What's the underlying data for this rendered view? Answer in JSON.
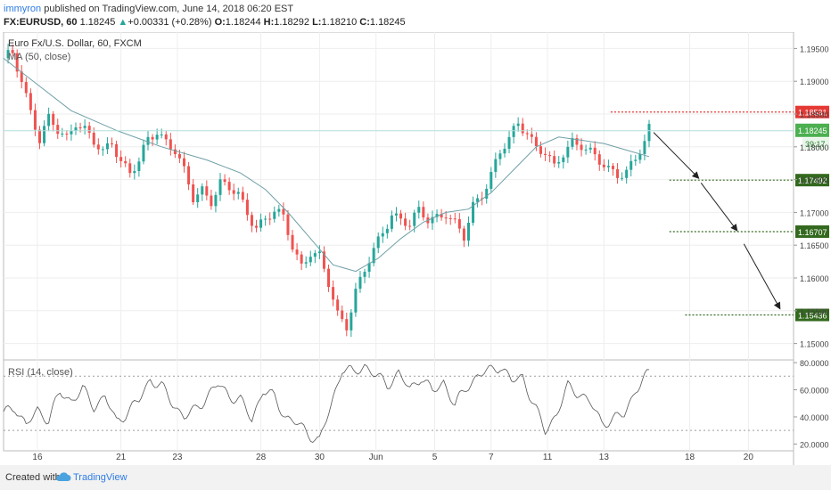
{
  "header": {
    "author": "immyron",
    "published": " published on TradingView.com, June 14, 2018 06:20 EST",
    "symbol": "FX:EURUSD, 60",
    "last": "1.18245",
    "change": "+0.00331 (+0.28%)",
    "o_label": "O:",
    "o_value": "1.18244",
    "h_label": "H:",
    "h_value": "1.18292",
    "l_label": "L:",
    "l_value": "1.18210",
    "c_label": "C:",
    "c_value": "1.18245"
  },
  "footer": {
    "created_with": "Created with",
    "brand": "TradingView"
  },
  "chart_data": {
    "type": "candlestick",
    "legend": {
      "instrument": "Euro Fx/U.S. Dollar, 60, FXCM",
      "ma": "MA (50, close)",
      "rsi": "RSI (14, close)"
    },
    "price_axis": {
      "range": [
        1.1475,
        1.1975
      ],
      "ticks": [
        "1.19500",
        "1.19000",
        "1.18500",
        "1.18000",
        "1.17500",
        "1.17000",
        "1.16500",
        "1.16000",
        "1.15500",
        "1.15000"
      ]
    },
    "rsi_axis": {
      "range": [
        15,
        82
      ],
      "ticks": [
        "80.0000",
        "60.0000",
        "40.0000",
        "20.0000"
      ],
      "bands": [
        70,
        30
      ]
    },
    "x_ticks": [
      {
        "label": "16",
        "x": 1.5
      },
      {
        "label": "21",
        "x": 5.2
      },
      {
        "label": "23",
        "x": 7.7
      },
      {
        "label": "28",
        "x": 11.4
      },
      {
        "label": "30",
        "x": 14.0
      },
      {
        "label": "Jun",
        "x": 16.5
      },
      {
        "label": "5",
        "x": 19.1
      },
      {
        "label": "7",
        "x": 21.6
      },
      {
        "label": "11",
        "x": 24.1
      },
      {
        "label": "13",
        "x": 26.6
      },
      {
        "label": "18",
        "x": 30.4
      },
      {
        "label": "20",
        "x": 33.0
      }
    ],
    "x_range": [
      0,
      35
    ],
    "last_x": 28.6,
    "price_path": [
      [
        0,
        1.1935
      ],
      [
        0.4,
        1.194
      ],
      [
        0.8,
        1.1905
      ],
      [
        1.2,
        1.1855
      ],
      [
        1.6,
        1.181
      ],
      [
        2.0,
        1.184
      ],
      [
        2.4,
        1.1825
      ],
      [
        2.8,
        1.1815
      ],
      [
        3.2,
        1.184
      ],
      [
        3.6,
        1.1825
      ],
      [
        4.0,
        1.1805
      ],
      [
        4.4,
        1.179
      ],
      [
        4.8,
        1.181
      ],
      [
        5.2,
        1.178
      ],
      [
        5.6,
        1.176
      ],
      [
        6.0,
        1.1775
      ],
      [
        6.4,
        1.181
      ],
      [
        6.8,
        1.1825
      ],
      [
        7.2,
        1.181
      ],
      [
        7.6,
        1.1795
      ],
      [
        8.0,
        1.176
      ],
      [
        8.4,
        1.172
      ],
      [
        8.8,
        1.1735
      ],
      [
        9.2,
        1.172
      ],
      [
        9.6,
        1.1745
      ],
      [
        10.0,
        1.1735
      ],
      [
        10.4,
        1.1725
      ],
      [
        10.8,
        1.17
      ],
      [
        11.2,
        1.168
      ],
      [
        11.6,
        1.169
      ],
      [
        12.0,
        1.17
      ],
      [
        12.4,
        1.169
      ],
      [
        12.8,
        1.165
      ],
      [
        13.2,
        1.162
      ],
      [
        13.6,
        1.164
      ],
      [
        14.0,
        1.163
      ],
      [
        14.4,
        1.159
      ],
      [
        14.8,
        1.1545
      ],
      [
        15.2,
        1.153
      ],
      [
        15.6,
        1.158
      ],
      [
        16.0,
        1.161
      ],
      [
        16.4,
        1.164
      ],
      [
        16.8,
        1.167
      ],
      [
        17.2,
        1.17
      ],
      [
        17.6,
        1.169
      ],
      [
        18.0,
        1.168
      ],
      [
        18.4,
        1.17
      ],
      [
        18.8,
        1.169
      ],
      [
        19.2,
        1.1695
      ],
      [
        19.6,
        1.17
      ],
      [
        20.0,
        1.168
      ],
      [
        20.4,
        1.166
      ],
      [
        20.8,
        1.171
      ],
      [
        21.2,
        1.173
      ],
      [
        21.6,
        1.176
      ],
      [
        22.0,
        1.179
      ],
      [
        22.4,
        1.181
      ],
      [
        22.8,
        1.1835
      ],
      [
        23.2,
        1.1825
      ],
      [
        23.6,
        1.18
      ],
      [
        24.0,
        1.179
      ],
      [
        24.4,
        1.1765
      ],
      [
        24.8,
        1.179
      ],
      [
        25.2,
        1.181
      ],
      [
        25.6,
        1.1805
      ],
      [
        26.0,
        1.179
      ],
      [
        26.4,
        1.1775
      ],
      [
        26.8,
        1.1765
      ],
      [
        27.2,
        1.176
      ],
      [
        27.6,
        1.1765
      ],
      [
        28.0,
        1.178
      ],
      [
        28.4,
        1.1805
      ],
      [
        28.6,
        1.1825
      ]
    ],
    "ma_path": [
      [
        0,
        1.1935
      ],
      [
        1.5,
        1.1895
      ],
      [
        3.0,
        1.1855
      ],
      [
        5.0,
        1.1825
      ],
      [
        7.0,
        1.18
      ],
      [
        9.0,
        1.178
      ],
      [
        10.5,
        1.176
      ],
      [
        11.6,
        1.1735
      ],
      [
        12.6,
        1.17
      ],
      [
        13.6,
        1.166
      ],
      [
        14.6,
        1.162
      ],
      [
        15.6,
        1.161
      ],
      [
        16.6,
        1.163
      ],
      [
        17.6,
        1.166
      ],
      [
        18.6,
        1.1685
      ],
      [
        19.6,
        1.17
      ],
      [
        20.6,
        1.1705
      ],
      [
        21.6,
        1.173
      ],
      [
        22.6,
        1.1765
      ],
      [
        23.6,
        1.18
      ],
      [
        24.6,
        1.1815
      ],
      [
        25.6,
        1.181
      ],
      [
        26.6,
        1.1805
      ],
      [
        27.6,
        1.1795
      ],
      [
        28.6,
        1.1785
      ]
    ],
    "rsi_path": [
      [
        0,
        42
      ],
      [
        0.5,
        48
      ],
      [
        1.0,
        33
      ],
      [
        1.5,
        45
      ],
      [
        2.0,
        38
      ],
      [
        2.5,
        58
      ],
      [
        3.0,
        52
      ],
      [
        3.5,
        60
      ],
      [
        4.0,
        48
      ],
      [
        4.5,
        55
      ],
      [
        5.0,
        36
      ],
      [
        5.5,
        44
      ],
      [
        6.0,
        52
      ],
      [
        6.5,
        68
      ],
      [
        7.0,
        62
      ],
      [
        7.5,
        50
      ],
      [
        8.0,
        40
      ],
      [
        8.5,
        45
      ],
      [
        9.0,
        55
      ],
      [
        9.5,
        64
      ],
      [
        10.0,
        56
      ],
      [
        10.5,
        52
      ],
      [
        11.0,
        38
      ],
      [
        11.5,
        60
      ],
      [
        12.0,
        54
      ],
      [
        12.5,
        40
      ],
      [
        13.0,
        35
      ],
      [
        13.5,
        28
      ],
      [
        14.0,
        22
      ],
      [
        14.5,
        48
      ],
      [
        15.0,
        76
      ],
      [
        15.5,
        72
      ],
      [
        16.0,
        78
      ],
      [
        16.5,
        70
      ],
      [
        17.0,
        64
      ],
      [
        17.5,
        72
      ],
      [
        18.0,
        60
      ],
      [
        18.5,
        70
      ],
      [
        19.0,
        58
      ],
      [
        19.5,
        66
      ],
      [
        20.0,
        48
      ],
      [
        20.5,
        62
      ],
      [
        21.0,
        70
      ],
      [
        21.5,
        74
      ],
      [
        22.0,
        78
      ],
      [
        22.5,
        66
      ],
      [
        23.0,
        70
      ],
      [
        23.5,
        48
      ],
      [
        24.0,
        30
      ],
      [
        24.5,
        42
      ],
      [
        25.0,
        62
      ],
      [
        25.5,
        58
      ],
      [
        26.0,
        50
      ],
      [
        26.5,
        36
      ],
      [
        27.0,
        38
      ],
      [
        27.5,
        42
      ],
      [
        28.0,
        60
      ],
      [
        28.3,
        66
      ],
      [
        28.6,
        72
      ]
    ],
    "horizontal_levels": [
      {
        "price": 1.18531,
        "label": "1.18531",
        "color": "#e53935",
        "x_from": 26.9
      },
      {
        "price": 1.17492,
        "label": "1.17492",
        "color": "#33691e",
        "x_from": 29.5
      },
      {
        "price": 1.16707,
        "label": "1.16707",
        "color": "#33691e",
        "x_from": 29.5
      },
      {
        "price": 1.15436,
        "label": "1.15436",
        "color": "#33691e",
        "x_from": 30.2
      }
    ],
    "current_price": {
      "price": 1.18245,
      "label": "1.18245",
      "countdown": "39:17",
      "color": "#4caf50"
    },
    "arrows": [
      {
        "x1": 28.8,
        "y1": 1.1822,
        "x2": 30.8,
        "y2": 1.1752
      },
      {
        "x1": 30.9,
        "y1": 1.1745,
        "x2": 32.5,
        "y2": 1.1672
      },
      {
        "x1": 32.8,
        "y1": 1.1652,
        "x2": 34.4,
        "y2": 1.1553
      }
    ],
    "colors": {
      "up": "#26a69a",
      "down": "#ef5350",
      "ma": "#6e9fa6",
      "rsi": "#555555",
      "grid": "#eeeeee"
    }
  }
}
